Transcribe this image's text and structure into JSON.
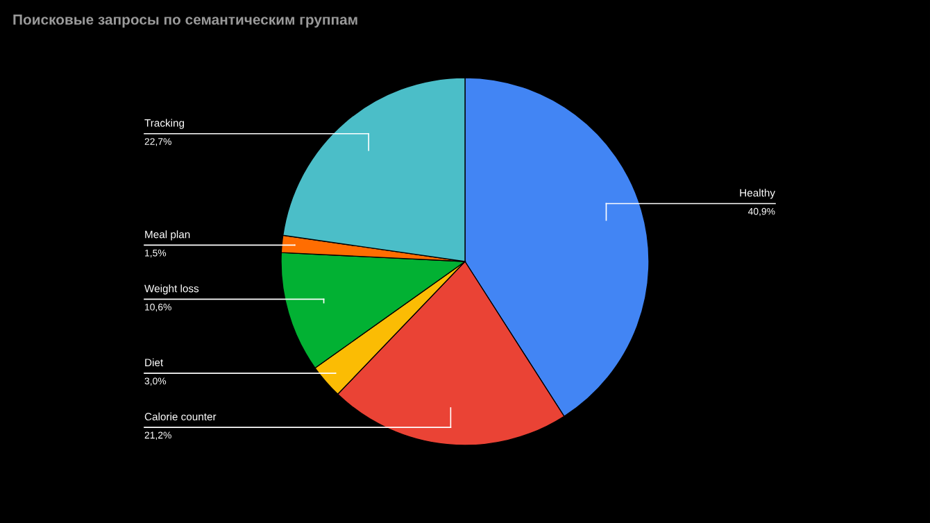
{
  "chart_data": {
    "type": "pie",
    "title": "Поисковые запросы по семантическим группам",
    "categories": [
      "Healthy",
      "Calorie counter",
      "Diet",
      "Weight loss",
      "Meal plan",
      "Tracking"
    ],
    "values": [
      40.9,
      21.2,
      3.0,
      10.6,
      1.5,
      22.7
    ],
    "colors": [
      "#4285f4",
      "#ea4335",
      "#fbbc04",
      "#02b133",
      "#ff6d01",
      "#4bbec8"
    ],
    "value_labels": [
      "40,9%",
      "21,2%",
      "3,0%",
      "10,6%",
      "1,5%",
      "22,7%"
    ],
    "legend": false
  }
}
